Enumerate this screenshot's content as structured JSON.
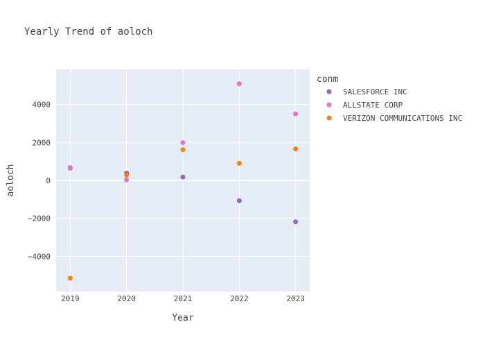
{
  "chart_data": {
    "type": "scatter",
    "title": "Yearly Trend of aoloch",
    "xlabel": "Year",
    "ylabel": "aoloch",
    "x_ticks": [
      "2019",
      "2020",
      "2021",
      "2022",
      "2023"
    ],
    "y_ticks": [
      -4000,
      -2000,
      0,
      2000,
      4000
    ],
    "y_tick_labels": [
      "−4000",
      "−2000",
      "0",
      "2000",
      "4000"
    ],
    "xlim": [
      2018.75,
      2023.25
    ],
    "ylim": [
      -5850,
      5850
    ],
    "grid": true,
    "legend_title": "conm",
    "legend_position": "right",
    "background_color": "#e5ecf6",
    "series": [
      {
        "name": "SALESFORCE INC",
        "color": "#9467bd",
        "points": [
          {
            "x": 2019,
            "y": 650
          },
          {
            "x": 2020,
            "y": 390
          },
          {
            "x": 2021,
            "y": 180
          },
          {
            "x": 2022,
            "y": -1070
          },
          {
            "x": 2023,
            "y": -2180
          }
        ]
      },
      {
        "name": "ALLSTATE CORP",
        "color": "#e377c2",
        "points": [
          {
            "x": 2019,
            "y": 680
          },
          {
            "x": 2020,
            "y": 30
          },
          {
            "x": 2021,
            "y": 1990
          },
          {
            "x": 2022,
            "y": 5090
          },
          {
            "x": 2023,
            "y": 3510
          }
        ]
      },
      {
        "name": "VERIZON COMMUNICATIONS INC",
        "color": "#ff7f0e",
        "points": [
          {
            "x": 2019,
            "y": -5150
          },
          {
            "x": 2020,
            "y": 280
          },
          {
            "x": 2021,
            "y": 1620
          },
          {
            "x": 2022,
            "y": 900
          },
          {
            "x": 2023,
            "y": 1660
          }
        ]
      }
    ]
  }
}
